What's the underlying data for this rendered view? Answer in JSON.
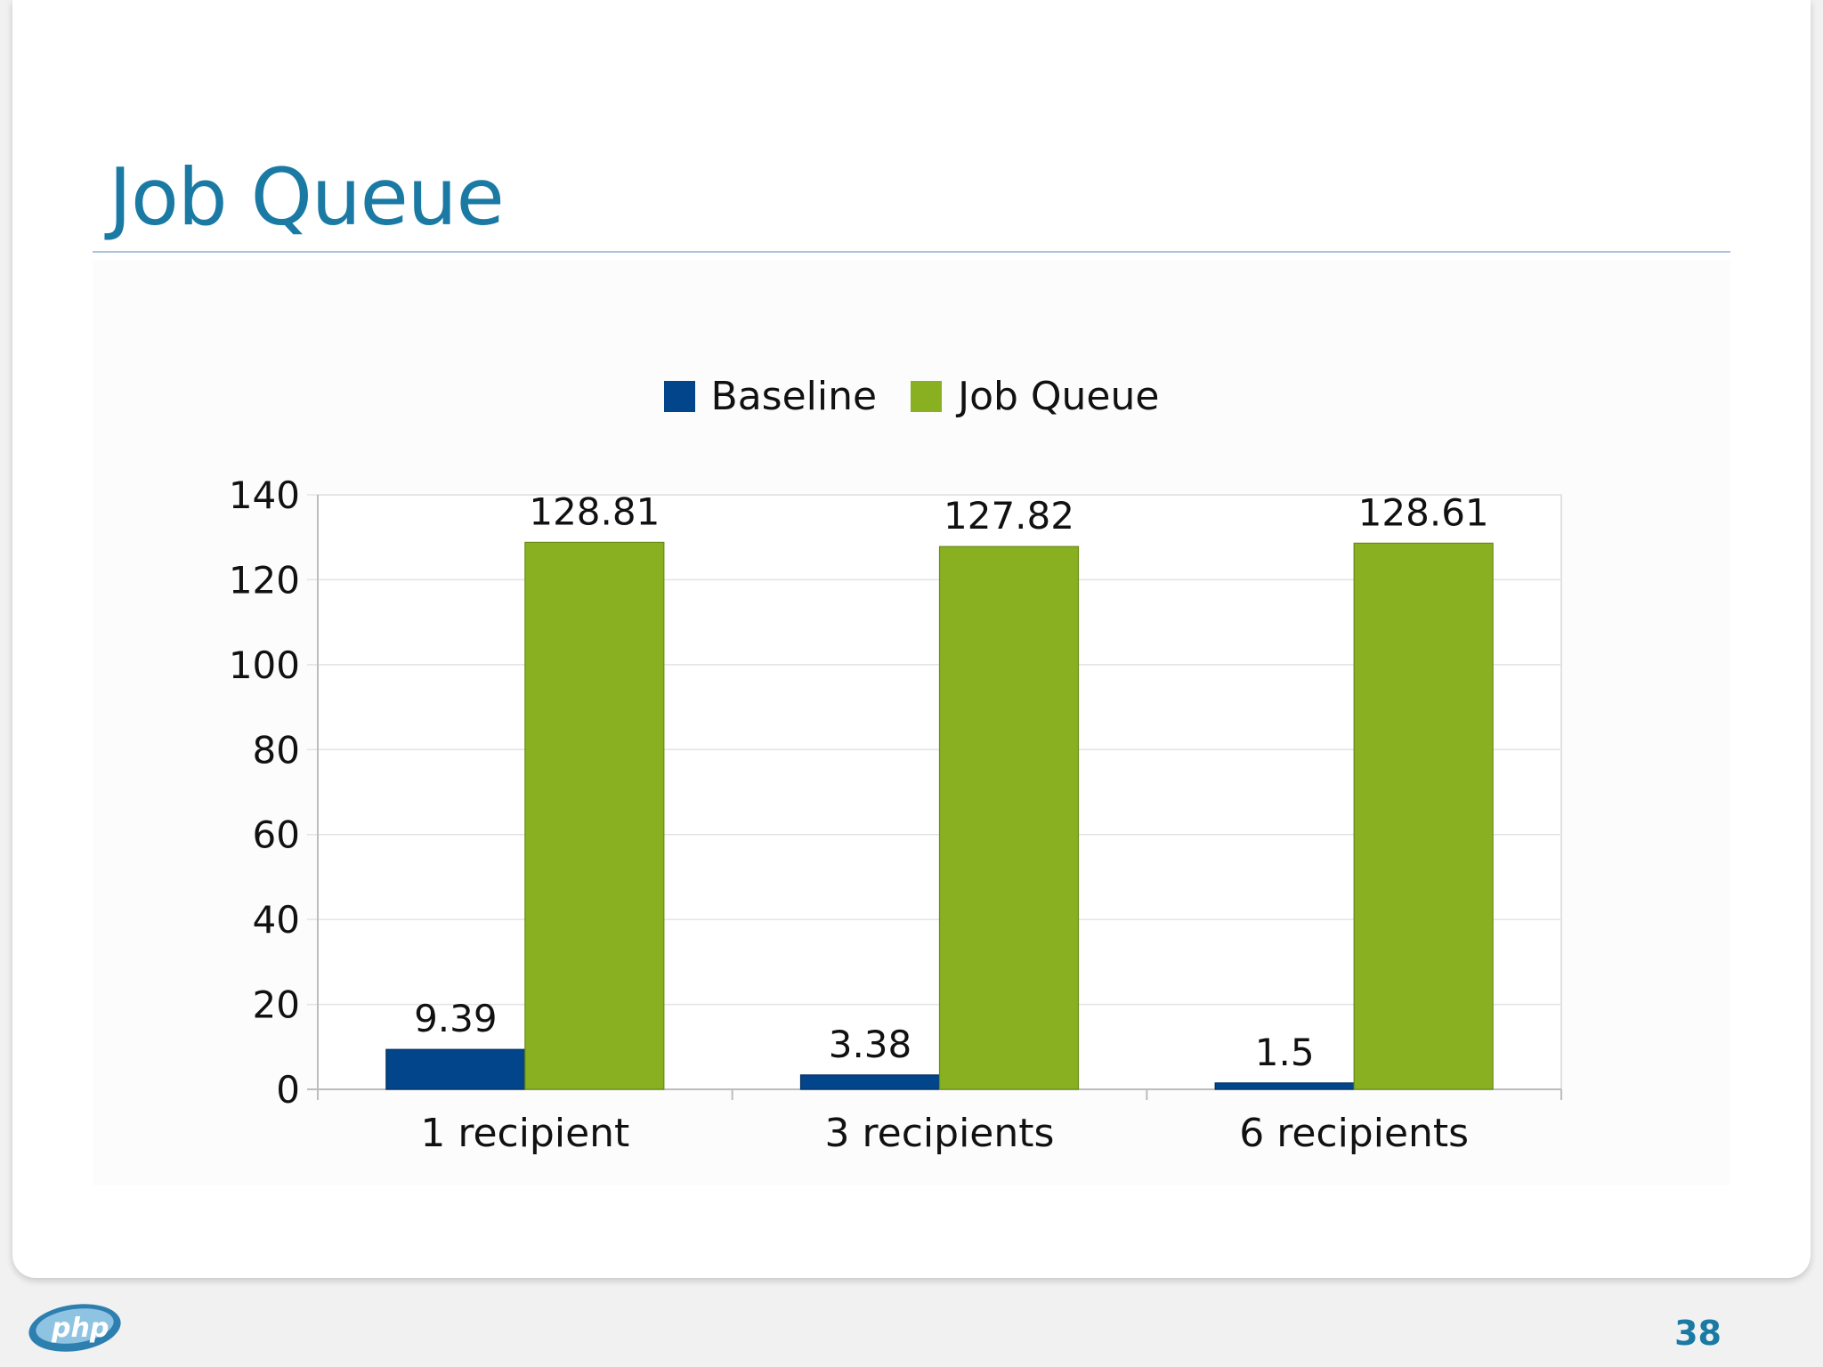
{
  "slide": {
    "title": "Job Queue",
    "page_number": "38",
    "logo_text": "php"
  },
  "colors": {
    "title": "#1a7aa3",
    "baseline": "#02458a",
    "job_queue": "#88b020",
    "grid": "#e3e3e3"
  },
  "chart_data": {
    "type": "bar",
    "title": "",
    "xlabel": "",
    "ylabel": "",
    "categories": [
      "1 recipient",
      "3 recipients",
      "6 recipients"
    ],
    "series": [
      {
        "name": "Baseline",
        "values": [
          9.39,
          3.38,
          1.5
        ],
        "labels": [
          "9.39",
          "3.38",
          "1.5"
        ],
        "color": "#02458a"
      },
      {
        "name": "Job Queue",
        "values": [
          128.81,
          127.82,
          128.61
        ],
        "labels": [
          "128.81",
          "127.82",
          "128.61"
        ],
        "color": "#88b020"
      }
    ],
    "ylim": [
      0,
      140
    ],
    "yticks": [
      "0",
      "20",
      "40",
      "60",
      "80",
      "100",
      "120",
      "140"
    ],
    "grid": true,
    "legend": "top-center"
  }
}
